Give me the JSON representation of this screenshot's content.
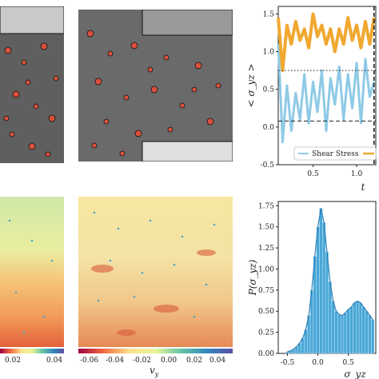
{
  "colorbar_left": {
    "ticks": [
      "0.02",
      "0.04"
    ]
  },
  "colorbar_mid": {
    "ticks": [
      "-0.06",
      "-0.04",
      "-0.02",
      "0.00",
      "0.02",
      "0.04"
    ],
    "label": "v_y"
  },
  "chart_data": [
    {
      "type": "line",
      "xlabel": "t",
      "ylabel": "< σ_yz >",
      "xticks": [
        "0.5",
        "1.0"
      ],
      "yticks": [
        "-0.5",
        "0.0",
        "0.5",
        "1.0",
        "1.5"
      ],
      "ylim": [
        -0.5,
        1.6
      ],
      "xlim": [
        0.1,
        1.22
      ],
      "legend": {
        "placement": "bottom",
        "entries": [
          "Shear Stress"
        ]
      },
      "series": [
        {
          "name": "Shear Stress",
          "color": "#8ecae6",
          "x": [
            0.1,
            0.15,
            0.2,
            0.25,
            0.3,
            0.35,
            0.4,
            0.45,
            0.5,
            0.55,
            0.6,
            0.65,
            0.7,
            0.75,
            0.8,
            0.85,
            0.9,
            0.95,
            1.0,
            1.05,
            1.1,
            1.15,
            1.2
          ],
          "y": [
            1.1,
            -0.2,
            0.55,
            -0.05,
            0.45,
            0.1,
            0.7,
            0.05,
            0.6,
            0.2,
            0.75,
            -0.05,
            0.65,
            0.3,
            0.8,
            0.1,
            0.7,
            0.25,
            0.85,
            0.05,
            0.9,
            0.4,
            0.6
          ]
        },
        {
          "name": "",
          "color": "#f0a830",
          "x": [
            0.1,
            0.15,
            0.2,
            0.25,
            0.3,
            0.35,
            0.4,
            0.45,
            0.5,
            0.55,
            0.6,
            0.65,
            0.7,
            0.75,
            0.8,
            0.85,
            0.9,
            0.95,
            1.0,
            1.05,
            1.1,
            1.15,
            1.2
          ],
          "y": [
            1.45,
            0.75,
            1.35,
            1.1,
            1.4,
            1.15,
            1.3,
            1.05,
            1.5,
            1.2,
            1.35,
            1.1,
            1.3,
            1.0,
            1.3,
            1.1,
            1.45,
            1.15,
            1.35,
            1.05,
            1.4,
            1.1,
            1.45
          ]
        }
      ],
      "hlines": [
        {
          "y": 0.75,
          "style": "dotted"
        },
        {
          "y": 0.08,
          "style": "dashed"
        }
      ],
      "vlines": [
        {
          "x": 1.2,
          "style": "dashed"
        }
      ]
    },
    {
      "type": "bar",
      "xlabel": "σ_yz",
      "ylabel": "P(σ_yz)",
      "xticks": [
        "-0.5",
        "0.0",
        "0.5"
      ],
      "yticks": [
        "0.00",
        "0.25",
        "0.50",
        "0.75",
        "1.00",
        "1.25",
        "1.50",
        "1.75"
      ],
      "ylim": [
        0,
        1.8
      ],
      "xlim": [
        -0.65,
        0.95
      ],
      "bar_color": "#4aa8d8",
      "bins": [
        -0.5,
        -0.45,
        -0.4,
        -0.35,
        -0.3,
        -0.25,
        -0.2,
        -0.15,
        -0.1,
        -0.05,
        0.0,
        0.05,
        0.1,
        0.15,
        0.2,
        0.25,
        0.3,
        0.35,
        0.4,
        0.45,
        0.5,
        0.55,
        0.6,
        0.65,
        0.7,
        0.75,
        0.8,
        0.85,
        0.9
      ],
      "values": [
        0.02,
        0.03,
        0.05,
        0.08,
        0.12,
        0.18,
        0.28,
        0.45,
        0.75,
        1.15,
        1.5,
        1.72,
        1.55,
        1.2,
        0.85,
        0.62,
        0.5,
        0.46,
        0.45,
        0.48,
        0.52,
        0.55,
        0.6,
        0.62,
        0.6,
        0.55,
        0.5,
        0.45,
        0.4
      ]
    }
  ]
}
